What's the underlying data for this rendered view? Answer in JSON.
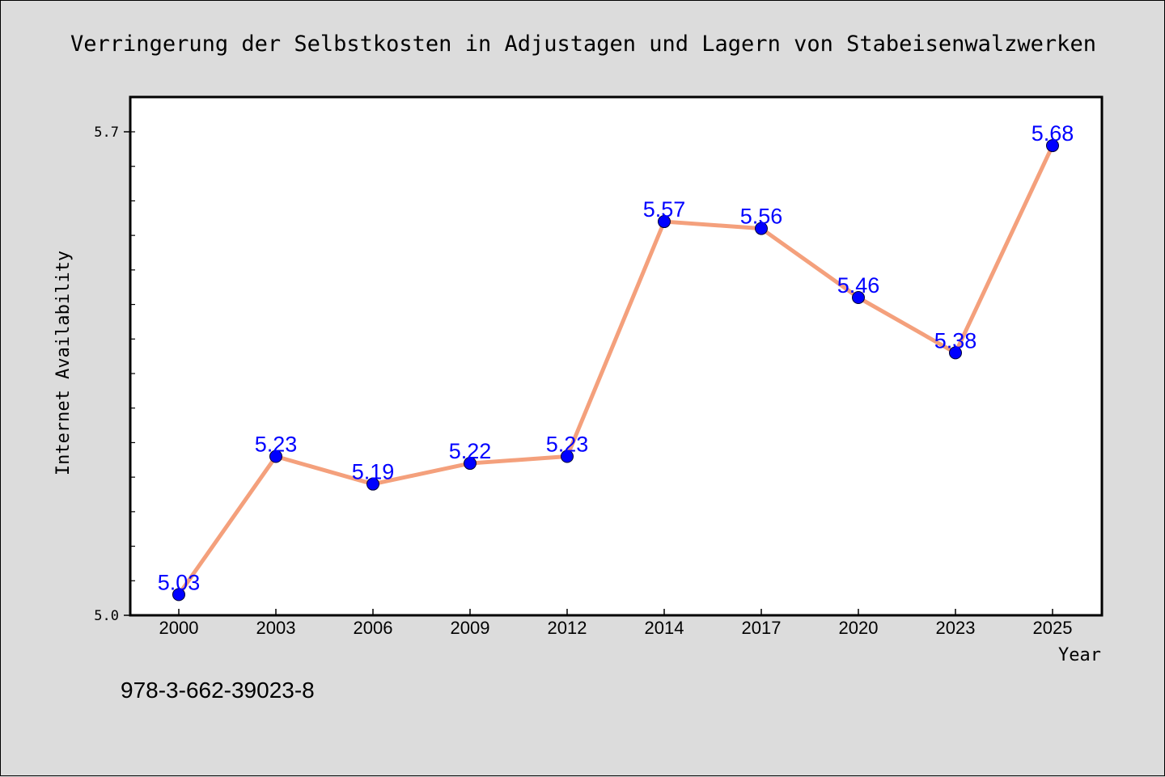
{
  "chart_data": {
    "type": "line",
    "title": "Verringerung der Selbstkosten in Adjustagen und Lagern von Stabeisenwalzwerken",
    "xlabel": "Year",
    "ylabel": "Internet Availability",
    "categories": [
      "2000",
      "2003",
      "2006",
      "2009",
      "2012",
      "2014",
      "2017",
      "2020",
      "2023",
      "2025"
    ],
    "values": [
      5.03,
      5.23,
      5.19,
      5.22,
      5.23,
      5.57,
      5.56,
      5.46,
      5.38,
      5.68
    ],
    "data_labels": [
      "5.03",
      "5.23",
      "5.19",
      "5.22",
      "5.23",
      "5.57",
      "5.56",
      "5.46",
      "5.38",
      "5.68"
    ],
    "ylim": [
      5.0,
      5.75
    ],
    "yticks": [
      {
        "value": 5.0,
        "label": "5.0"
      },
      {
        "value": 5.7,
        "label": "5.7"
      }
    ],
    "yminor_step": 0.05,
    "grid": false,
    "line_color": "#f4a07c",
    "marker_color": "#0000ff",
    "label_color": "#0000ff"
  },
  "footnote": "978-3-662-39023-8"
}
